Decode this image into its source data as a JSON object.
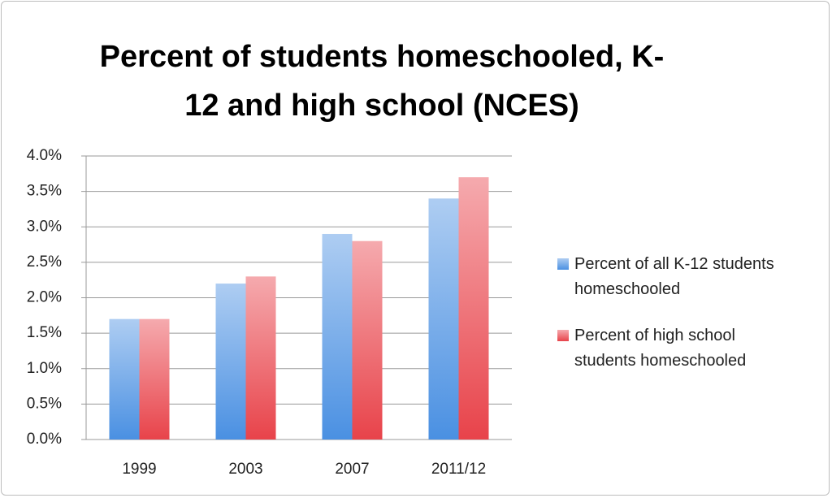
{
  "chart_data": {
    "type": "bar",
    "title": "Percent of students homeschooled, K-12 and high school (NCES)",
    "categories": [
      "1999",
      "2003",
      "2007",
      "2011/12"
    ],
    "series": [
      {
        "name": "Percent of all K-12 students homeschooled",
        "color": "#4a90e2",
        "values": [
          1.7,
          2.2,
          2.9,
          3.4
        ]
      },
      {
        "name": "Percent of high school students homeschooled",
        "color": "#e8434a",
        "values": [
          1.7,
          2.3,
          2.8,
          3.7
        ]
      }
    ],
    "ylim": [
      0,
      4
    ],
    "yticks": [
      {
        "value": 0,
        "label": "0.0%"
      },
      {
        "value": 0.5,
        "label": "0.5%"
      },
      {
        "value": 1,
        "label": "1.0%"
      },
      {
        "value": 1.5,
        "label": "1.5%"
      },
      {
        "value": 2,
        "label": "2.0%"
      },
      {
        "value": 2.5,
        "label": "2.5%"
      },
      {
        "value": 3,
        "label": "3.0%"
      },
      {
        "value": 3.5,
        "label": "3.5%"
      },
      {
        "value": 4,
        "label": "4.0%"
      }
    ],
    "grid": true,
    "legend": "right"
  }
}
